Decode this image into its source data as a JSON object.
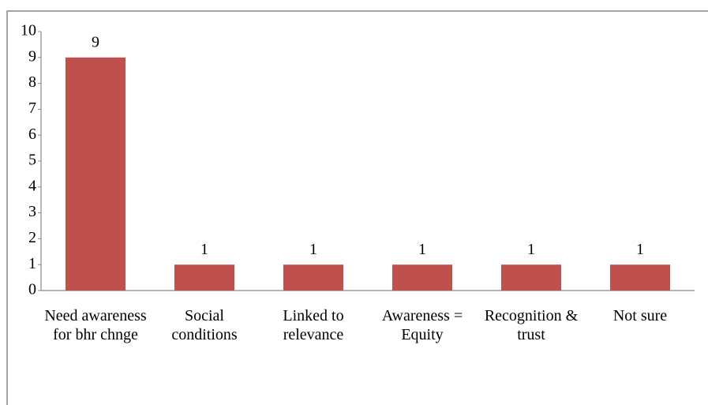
{
  "chart_data": {
    "type": "bar",
    "categories": [
      "Need awareness for bhr chnge",
      "Social conditions",
      "Linked to relevance",
      "Awareness = Equity",
      "Recognition & trust",
      "Not sure"
    ],
    "values": [
      9,
      1,
      1,
      1,
      1,
      1
    ],
    "color": "#c0504d",
    "ylim": [
      0,
      10
    ],
    "yticks": [
      0,
      1,
      2,
      3,
      4,
      5,
      6,
      7,
      8,
      9,
      10
    ],
    "grid": false
  }
}
